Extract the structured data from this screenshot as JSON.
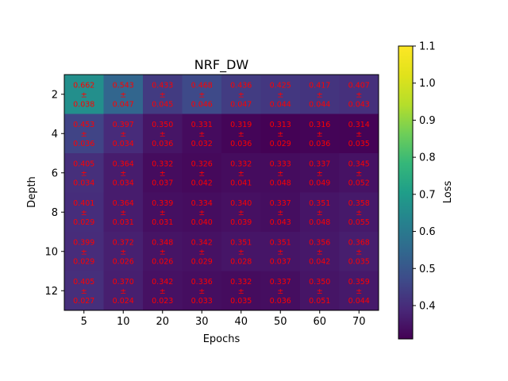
{
  "chart_data": {
    "type": "heatmap",
    "title": "NRF_DW",
    "xlabel": "Epochs",
    "ylabel": "Depth",
    "colorbar_label": "Loss",
    "colormap": "viridis",
    "x": [
      5,
      10,
      20,
      30,
      40,
      50,
      60,
      70
    ],
    "y": [
      2,
      4,
      6,
      8,
      10,
      12
    ],
    "yticks": [
      2,
      4,
      6,
      8,
      10,
      12
    ],
    "clim": [
      0.31,
      1.1
    ],
    "colorbar_ticks": [
      "0.4",
      "0.5",
      "0.6",
      "0.7",
      "0.8",
      "0.9",
      "1.0",
      "1.1"
    ],
    "mean": [
      [
        "0.662",
        "0.543",
        "0.433",
        "0.468",
        "0.436",
        "0.425",
        "0.417",
        "0.407"
      ],
      [
        "0.453",
        "0.397",
        "0.350",
        "0.331",
        "0.319",
        "0.313",
        "0.316",
        "0.314"
      ],
      [
        "0.405",
        "0.364",
        "0.332",
        "0.326",
        "0.332",
        "0.333",
        "0.337",
        "0.345"
      ],
      [
        "0.401",
        "0.364",
        "0.339",
        "0.334",
        "0.340",
        "0.337",
        "0.351",
        "0.358"
      ],
      [
        "0.399",
        "0.372",
        "0.348",
        "0.342",
        "0.351",
        "0.351",
        "0.356",
        "0.368"
      ],
      [
        "0.405",
        "0.370",
        "0.342",
        "0.336",
        "0.332",
        "0.337",
        "0.350",
        "0.359"
      ]
    ],
    "std": [
      [
        "0.038",
        "0.047",
        "0.045",
        "0.046",
        "0.047",
        "0.044",
        "0.044",
        "0.043"
      ],
      [
        "0.036",
        "0.034",
        "0.036",
        "0.032",
        "0.036",
        "0.029",
        "0.036",
        "0.035"
      ],
      [
        "0.034",
        "0.034",
        "0.037",
        "0.042",
        "0.041",
        "0.048",
        "0.049",
        "0.052"
      ],
      [
        "0.029",
        "0.031",
        "0.031",
        "0.040",
        "0.039",
        "0.043",
        "0.048",
        "0.055"
      ],
      [
        "0.029",
        "0.026",
        "0.026",
        "0.029",
        "0.028",
        "0.037",
        "0.042",
        "0.035"
      ],
      [
        "0.027",
        "0.024",
        "0.023",
        "0.033",
        "0.035",
        "0.036",
        "0.051",
        "0.044"
      ]
    ],
    "pm_symbol": "±",
    "label_color": "#ff0000",
    "grid": false
  }
}
